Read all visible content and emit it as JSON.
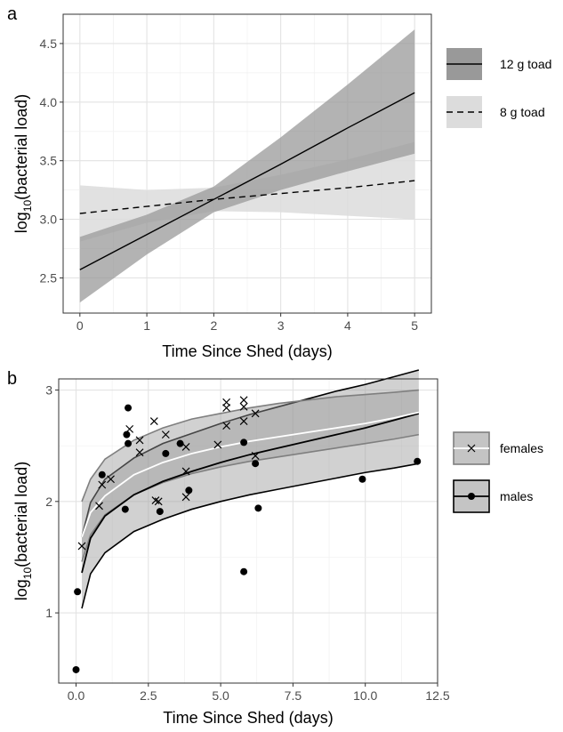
{
  "chart_data": [
    {
      "panel_label": "a",
      "type": "line",
      "xlabel": "Time Since Shed (days)",
      "ylabel_main": "log",
      "ylabel_sub": "10",
      "ylabel_rest": "(bacterial load)",
      "xlim": [
        -0.25,
        5.25
      ],
      "ylim": [
        2.2,
        4.75
      ],
      "xticks": [
        0,
        1,
        2,
        3,
        4,
        5
      ],
      "yticks": [
        2.5,
        3.0,
        3.5,
        4.0,
        4.5
      ],
      "ytick_labels": [
        "2.5",
        "3.0",
        "3.5",
        "4.0",
        "4.5"
      ],
      "grid": true,
      "legend_position": "right",
      "series": [
        {
          "name": "12 g toad",
          "line_style": "solid",
          "ribbon_color": "#999999",
          "x": [
            0,
            1,
            2,
            3,
            4,
            5
          ],
          "y": [
            2.57,
            2.87,
            3.17,
            3.47,
            3.78,
            4.08
          ],
          "lower": [
            2.29,
            2.7,
            3.06,
            3.25,
            3.41,
            3.56
          ],
          "upper": [
            2.85,
            3.04,
            3.28,
            3.7,
            4.15,
            4.62
          ]
        },
        {
          "name": "8 g toad",
          "line_style": "dashed",
          "ribbon_color": "#dcdcdc",
          "x": [
            0,
            1,
            2,
            3,
            4,
            5
          ],
          "y": [
            3.05,
            3.11,
            3.17,
            3.22,
            3.27,
            3.33
          ],
          "lower": [
            2.81,
            2.97,
            3.07,
            3.06,
            3.03,
            3.0
          ],
          "upper": [
            3.29,
            3.25,
            3.27,
            3.38,
            3.51,
            3.66
          ]
        }
      ]
    },
    {
      "panel_label": "b",
      "type": "scatter",
      "xlabel": "Time Since Shed (days)",
      "ylabel_main": "log",
      "ylabel_sub": "10",
      "ylabel_rest": "(bacterial load)",
      "xlim": [
        -0.6,
        12.5
      ],
      "ylim": [
        0.37,
        3.1
      ],
      "xticks": [
        0,
        2.5,
        5,
        7.5,
        10,
        12.5
      ],
      "xtick_labels": [
        "0.0",
        "2.5",
        "5.0",
        "7.5",
        "10.0",
        "12.5"
      ],
      "yticks": [
        1,
        2,
        3
      ],
      "ytick_labels": [
        "1",
        "2",
        "3"
      ],
      "grid": true,
      "legend_position": "right",
      "series": [
        {
          "name": "females",
          "marker": "x",
          "fit_line_color": "#ffffff",
          "ribbon_edge_color": "#7f7f7f",
          "fit": {
            "x": [
              0.2,
              0.5,
              1,
              2,
              3,
              4,
              5,
              6,
              7,
              8,
              9,
              10,
              11,
              11.85
            ],
            "y": [
              1.68,
              1.9,
              2.05,
              2.24,
              2.35,
              2.43,
              2.49,
              2.54,
              2.58,
              2.62,
              2.66,
              2.7,
              2.75,
              2.8
            ],
            "lower": [
              1.46,
              1.7,
              1.88,
              2.06,
              2.17,
              2.25,
              2.31,
              2.36,
              2.4,
              2.44,
              2.48,
              2.52,
              2.56,
              2.6
            ],
            "upper": [
              2.0,
              2.2,
              2.38,
              2.55,
              2.66,
              2.74,
              2.79,
              2.84,
              2.88,
              2.91,
              2.94,
              2.96,
              2.98,
              3.0
            ]
          },
          "points": [
            {
              "x": 0.2,
              "y": 1.6
            },
            {
              "x": 0.8,
              "y": 1.96
            },
            {
              "x": 0.9,
              "y": 2.15
            },
            {
              "x": 1.2,
              "y": 2.2
            },
            {
              "x": 1.85,
              "y": 2.65
            },
            {
              "x": 2.2,
              "y": 2.55
            },
            {
              "x": 2.2,
              "y": 2.44
            },
            {
              "x": 2.7,
              "y": 2.72
            },
            {
              "x": 2.75,
              "y": 2.01
            },
            {
              "x": 2.85,
              "y": 2.0
            },
            {
              "x": 3.1,
              "y": 2.6
            },
            {
              "x": 3.8,
              "y": 2.49
            },
            {
              "x": 3.8,
              "y": 2.27
            },
            {
              "x": 3.8,
              "y": 2.04
            },
            {
              "x": 4.9,
              "y": 2.51
            },
            {
              "x": 5.2,
              "y": 2.89
            },
            {
              "x": 5.2,
              "y": 2.84
            },
            {
              "x": 5.2,
              "y": 2.68
            },
            {
              "x": 5.8,
              "y": 2.91
            },
            {
              "x": 5.8,
              "y": 2.85
            },
            {
              "x": 5.8,
              "y": 2.72
            },
            {
              "x": 6.2,
              "y": 2.79
            },
            {
              "x": 6.2,
              "y": 2.41
            }
          ]
        },
        {
          "name": "males",
          "marker": "dot",
          "fit_line_color": "#000000",
          "ribbon_edge_color": "#000000",
          "fit": {
            "x": [
              0.2,
              0.5,
              1,
              2,
              3,
              4,
              5,
              6,
              7,
              8,
              9,
              10,
              11,
              11.85
            ],
            "y": [
              1.36,
              1.67,
              1.87,
              2.06,
              2.18,
              2.27,
              2.35,
              2.42,
              2.48,
              2.54,
              2.6,
              2.66,
              2.73,
              2.79
            ],
            "lower": [
              1.04,
              1.35,
              1.54,
              1.73,
              1.84,
              1.93,
              2.0,
              2.06,
              2.11,
              2.16,
              2.21,
              2.26,
              2.3,
              2.34
            ],
            "upper": [
              1.68,
              1.99,
              2.2,
              2.39,
              2.52,
              2.61,
              2.7,
              2.78,
              2.85,
              2.92,
              2.99,
              3.05,
              3.12,
              3.18
            ]
          },
          "points": [
            {
              "x": 0.0,
              "y": 0.49
            },
            {
              "x": 0.05,
              "y": 1.19
            },
            {
              "x": 0.9,
              "y": 2.24
            },
            {
              "x": 1.8,
              "y": 2.84
            },
            {
              "x": 1.75,
              "y": 2.6
            },
            {
              "x": 1.8,
              "y": 2.52
            },
            {
              "x": 1.7,
              "y": 1.93
            },
            {
              "x": 2.9,
              "y": 1.91
            },
            {
              "x": 3.1,
              "y": 2.43
            },
            {
              "x": 3.6,
              "y": 2.52
            },
            {
              "x": 3.9,
              "y": 2.1
            },
            {
              "x": 5.8,
              "y": 2.53
            },
            {
              "x": 5.8,
              "y": 1.37
            },
            {
              "x": 6.2,
              "y": 2.34
            },
            {
              "x": 6.3,
              "y": 1.94
            },
            {
              "x": 9.9,
              "y": 2.2
            },
            {
              "x": 11.8,
              "y": 2.36
            }
          ]
        }
      ]
    }
  ]
}
